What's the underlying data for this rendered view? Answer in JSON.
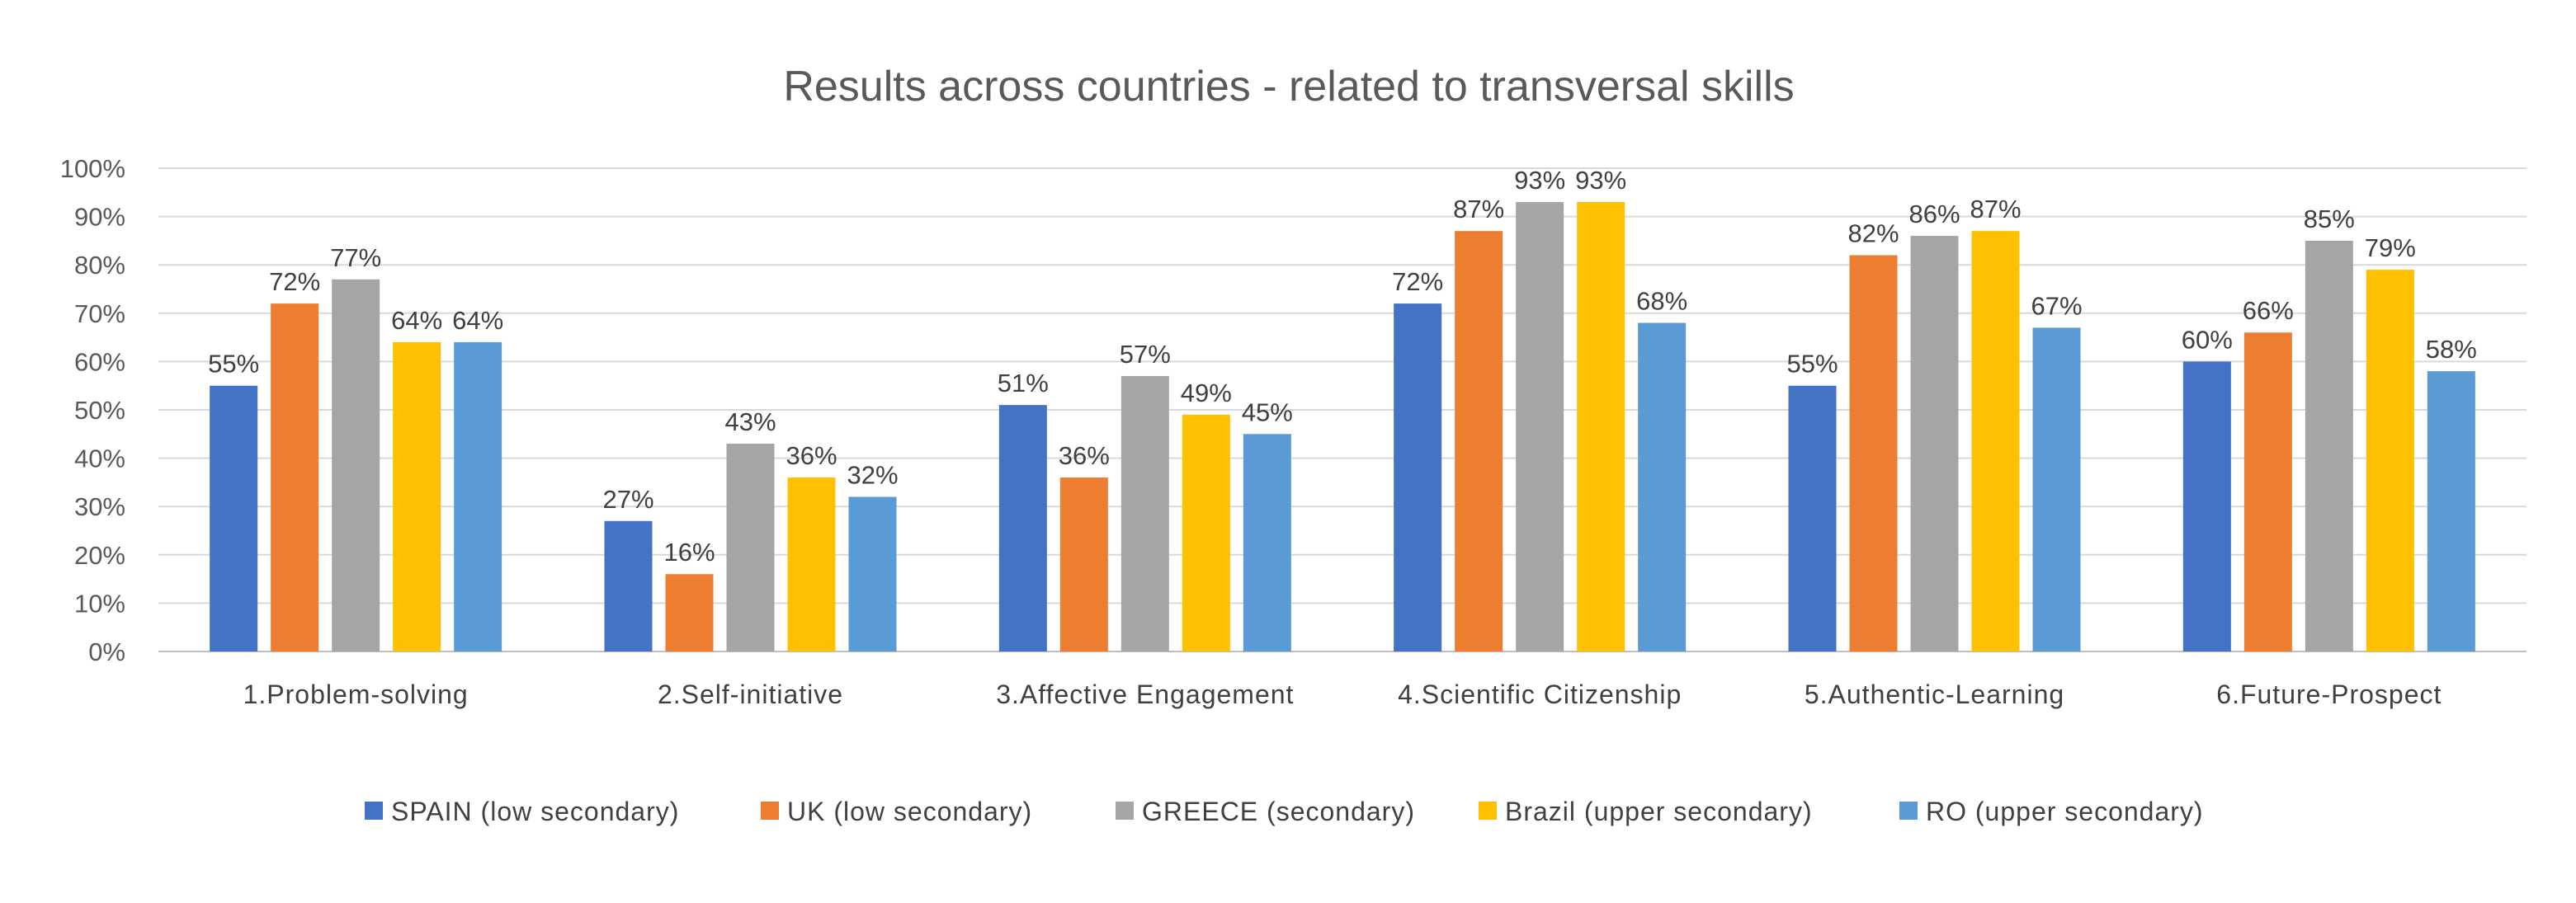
{
  "chart_data": {
    "type": "bar",
    "title": "Results across countries - related to transversal skills",
    "xlabel": "",
    "ylabel": "",
    "ylim": [
      0,
      100
    ],
    "yticks": [
      "0%",
      "10%",
      "20%",
      "30%",
      "40%",
      "50%",
      "60%",
      "70%",
      "80%",
      "90%",
      "100%"
    ],
    "categories": [
      "1.Problem-solving",
      "2.Self-initiative",
      "3.Affective Engagement",
      "4.Scientific Citizenship",
      "5.Authentic-Learning",
      "6.Future-Prospect"
    ],
    "series": [
      {
        "name": "SPAIN (low secondary)",
        "color": "#4472C4",
        "values": [
          55,
          27,
          51,
          72,
          55,
          60
        ],
        "labels": [
          "55%",
          "27%",
          "51%",
          "72%",
          "55%",
          "60%"
        ]
      },
      {
        "name": "UK (low secondary)",
        "color": "#ED7D31",
        "values": [
          72,
          16,
          36,
          87,
          82,
          66
        ],
        "labels": [
          "72%",
          "16%",
          "36%",
          "87%",
          "82%",
          "66%"
        ]
      },
      {
        "name": "GREECE (secondary)",
        "color": "#A5A5A5",
        "values": [
          77,
          43,
          57,
          93,
          86,
          85
        ],
        "labels": [
          "77%",
          "43%",
          "57%",
          "93%",
          "86%",
          "85%"
        ]
      },
      {
        "name": "Brazil (upper secondary)",
        "color": "#FFC000",
        "values": [
          64,
          36,
          49,
          93,
          87,
          79
        ],
        "labels": [
          "64%",
          "36%",
          "49%",
          "93%",
          "87%",
          "79%"
        ]
      },
      {
        "name": "RO (upper secondary)",
        "color": "#5B9BD5",
        "values": [
          64,
          32,
          45,
          68,
          67,
          58
        ],
        "labels": [
          "64%",
          "32%",
          "45%",
          "68%",
          "67%",
          "58%"
        ]
      }
    ],
    "grid": true,
    "legend_position": "bottom"
  }
}
